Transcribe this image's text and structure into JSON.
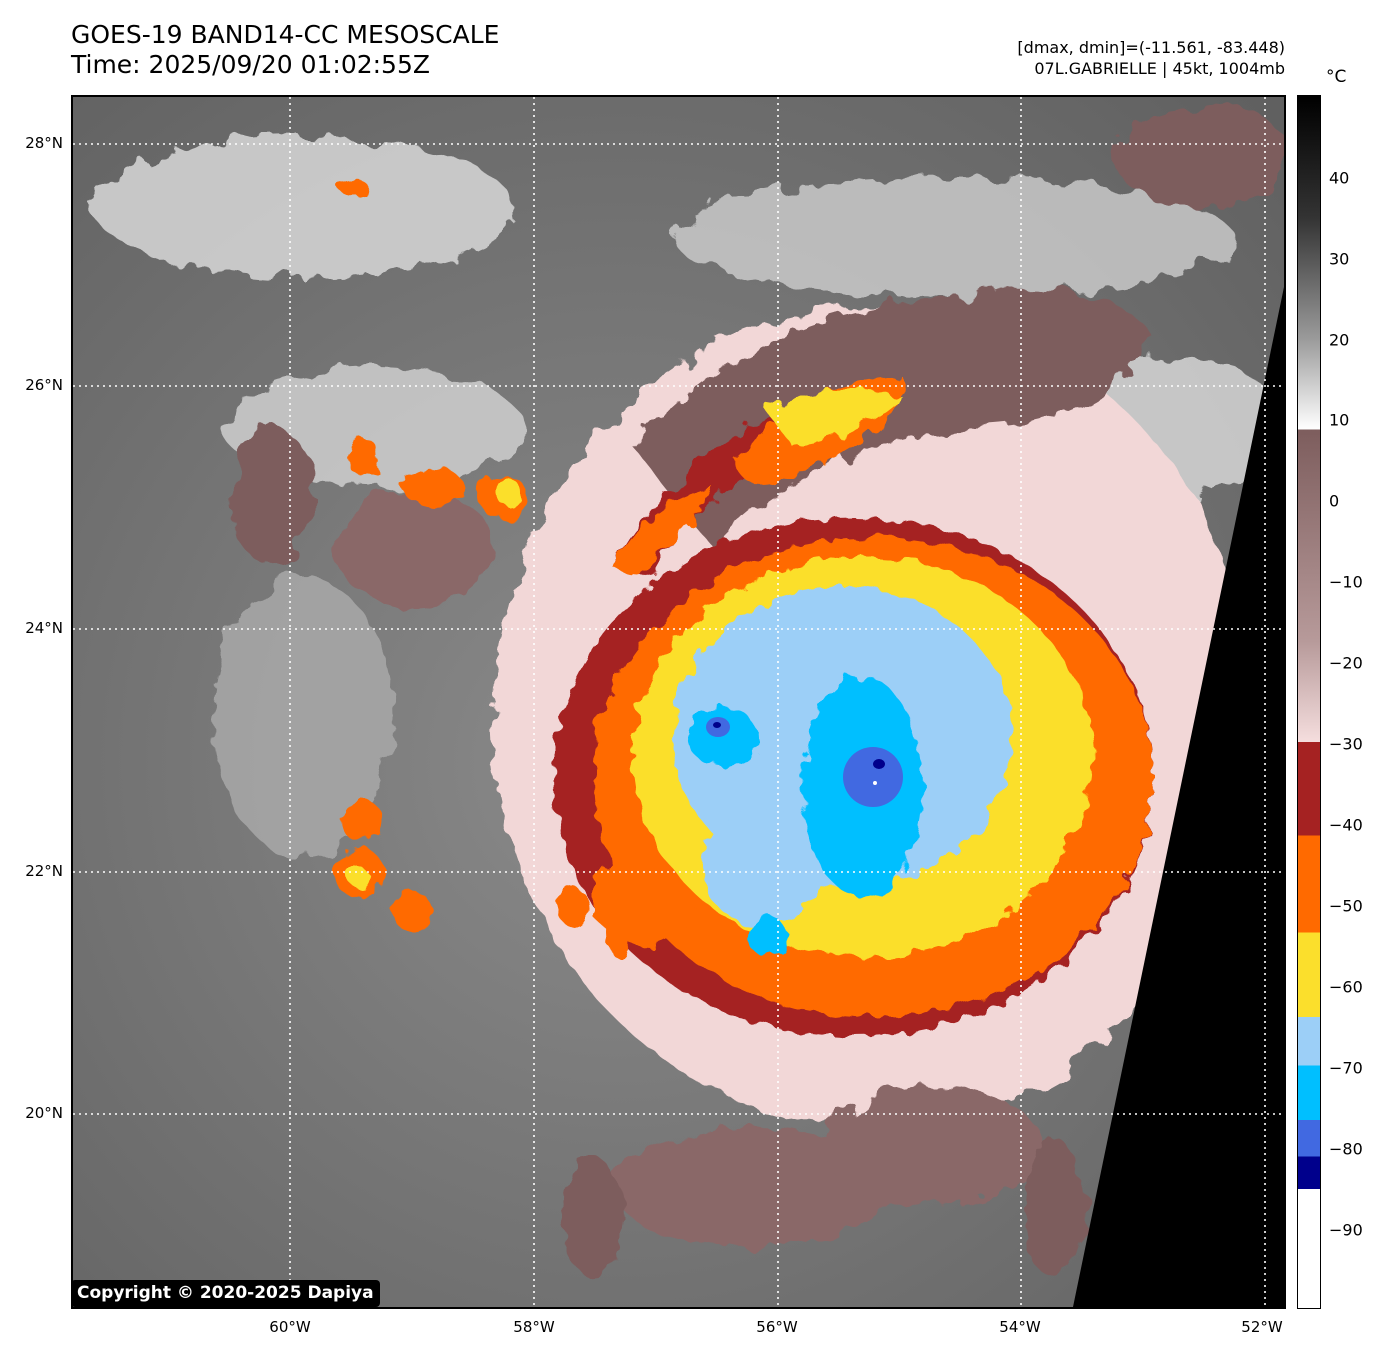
{
  "title": {
    "line1": "GOES-19 BAND14-CC MESOSCALE",
    "line2": "Time: 2025/09/20 01:02:55Z"
  },
  "meta": {
    "range": "[dmax, dmin]=(-11.561, -83.448)",
    "storm": "07L.GABRIELLE | 45kt, 1004mb"
  },
  "colorbar": {
    "unit": "°C",
    "ticks": [
      "40",
      "30",
      "20",
      "10",
      "0",
      "−10",
      "−20",
      "−30",
      "−40",
      "−50",
      "−60",
      "−70",
      "−80",
      "−90"
    ],
    "colors": {
      "black": "#000000",
      "white": "#ffffff",
      "brown": "#7d5d5d",
      "pink": "#f5dede",
      "darkred": "#a52222",
      "orange": "#ff6a00",
      "yellow": "#fbdf2c",
      "lightblue": "#9ccff7",
      "cyan": "#00bfff",
      "royalblue": "#4169e1",
      "navy": "#00008c"
    }
  },
  "axes": {
    "lat_labels": [
      "28°N",
      "26°N",
      "24°N",
      "22°N",
      "20°N"
    ],
    "lon_labels": [
      "60°W",
      "58°W",
      "56°W",
      "54°W",
      "52°W"
    ]
  },
  "copyright": "Copyright © 2020-2025 Dapiya"
}
